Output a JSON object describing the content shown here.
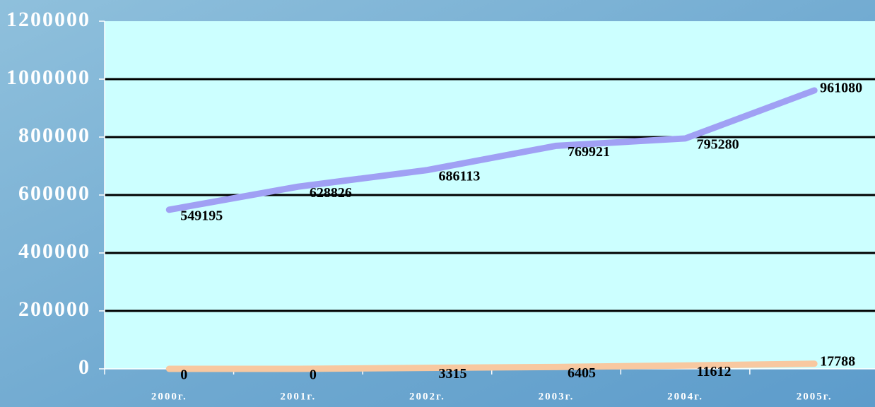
{
  "chart_data": {
    "type": "line",
    "categories": [
      "2000г.",
      "2001г.",
      "2002г.",
      "2003г.",
      "2004г.",
      "2005г."
    ],
    "series": [
      {
        "color": "#a0a0f4",
        "values": [
          549195,
          628826,
          686113,
          769921,
          795280,
          961080
        ]
      },
      {
        "color": "#f8c8a0",
        "values": [
          0,
          0,
          3315,
          6405,
          11612,
          17788
        ]
      }
    ],
    "ylim": [
      0,
      1200000
    ],
    "yticks": [
      0,
      200000,
      400000,
      600000,
      800000,
      1000000,
      1200000
    ],
    "grid": true
  }
}
